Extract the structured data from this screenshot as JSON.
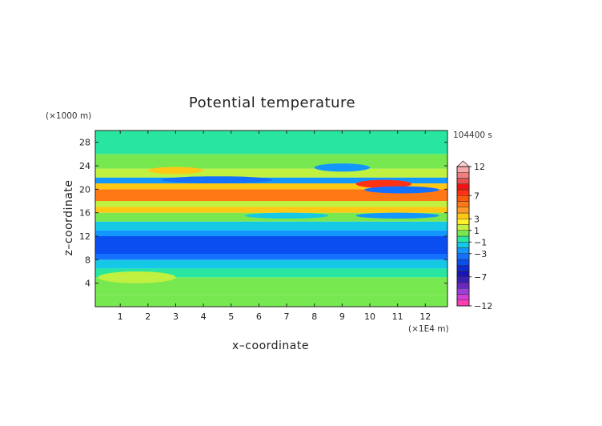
{
  "chart_data": {
    "type": "heatmap",
    "title": "Potential temperature",
    "xlabel": "x–coordinate",
    "ylabel": "z–coordinate",
    "x_unit": "(×1E4 m)",
    "y_unit": "(×1000 m)",
    "time_label": "104400 s",
    "x_ticks": [
      "1",
      "2",
      "3",
      "4",
      "5",
      "6",
      "7",
      "8",
      "9",
      "10",
      "11",
      "12"
    ],
    "y_ticks": [
      "4",
      "8",
      "12",
      "16",
      "20",
      "24",
      "28"
    ],
    "xlim": [
      0.1,
      12.8
    ],
    "ylim": [
      0,
      30
    ],
    "colorbar": {
      "labels": [
        "12",
        "7",
        "3",
        "1",
        "−1",
        "−3",
        "−7",
        "−12"
      ],
      "levels": [
        -12,
        -11,
        -10,
        -9,
        -8,
        -7,
        -6,
        -5,
        -4,
        -3,
        -2,
        -1,
        0,
        1,
        2,
        3,
        4,
        5,
        6,
        7,
        8,
        9,
        10,
        11,
        12
      ],
      "colors": [
        "#ff3fb0",
        "#d23fd8",
        "#9a3fd8",
        "#6a28c0",
        "#3a1fb0",
        "#1a14b4",
        "#0a2cd0",
        "#0a4ef0",
        "#1470ff",
        "#1496ff",
        "#14c8e6",
        "#28e6a0",
        "#78e850",
        "#c0f040",
        "#fff028",
        "#ffc814",
        "#ff9a28",
        "#ff7814",
        "#ff5a0a",
        "#ff3214",
        "#f01414",
        "#e85050",
        "#f08080",
        "#f8a8a8"
      ]
    },
    "bands": [
      {
        "z": [
          0,
          2
        ],
        "value": 0.0
      },
      {
        "z": [
          2,
          5
        ],
        "value": 0.5
      },
      {
        "z": [
          5,
          6.5
        ],
        "value": -0.3
      },
      {
        "z": [
          6.5,
          8
        ],
        "value": -1.5
      },
      {
        "z": [
          8,
          9
        ],
        "value": -3.2
      },
      {
        "z": [
          9,
          12
        ],
        "value": -4.2
      },
      {
        "z": [
          12,
          13
        ],
        "value": -2.5
      },
      {
        "z": [
          13,
          14.5
        ],
        "value": -1.2
      },
      {
        "z": [
          14.5,
          16
        ],
        "value": 0.5
      },
      {
        "z": [
          16,
          17
        ],
        "value": 3.5
      },
      {
        "z": [
          17,
          18
        ],
        "value": 1.2
      },
      {
        "z": [
          18,
          20
        ],
        "value": 5.2
      },
      {
        "z": [
          20,
          21
        ],
        "value": 3.0
      },
      {
        "z": [
          21,
          22
        ],
        "value": -2.5
      },
      {
        "z": [
          22,
          23.5
        ],
        "value": 1.5
      },
      {
        "z": [
          23.5,
          26
        ],
        "value": 0.5
      },
      {
        "z": [
          26,
          30
        ],
        "value": -0.3
      }
    ],
    "features": [
      {
        "x": [
          2.5,
          6.5
        ],
        "z": [
          21,
          22.2
        ],
        "value": -3.5
      },
      {
        "x": [
          9.5,
          11.5
        ],
        "z": [
          20.2,
          21.6
        ],
        "value": 7.5
      },
      {
        "x": [
          9.8,
          12.5
        ],
        "z": [
          19.3,
          20.5
        ],
        "value": -3.5
      },
      {
        "x": [
          8.0,
          10.0
        ],
        "z": [
          23.0,
          24.4
        ],
        "value": -2.5
      },
      {
        "x": [
          2.0,
          4.0
        ],
        "z": [
          22.6,
          23.8
        ],
        "value": 3.5
      },
      {
        "x": [
          0.2,
          3.0
        ],
        "z": [
          4.0,
          6.0
        ],
        "value": 1.0
      },
      {
        "x": [
          5.5,
          8.5
        ],
        "z": [
          15.0,
          16.0
        ],
        "value": -1.5
      },
      {
        "x": [
          9.5,
          12.5
        ],
        "z": [
          15.0,
          16.0
        ],
        "value": -2.5
      }
    ]
  }
}
